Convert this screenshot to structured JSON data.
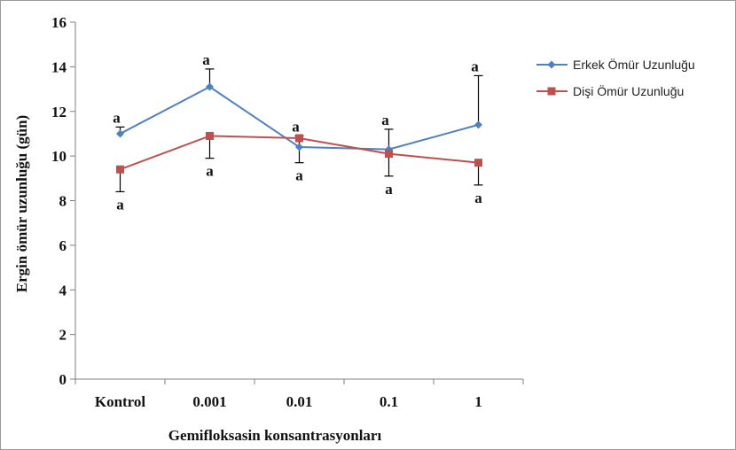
{
  "chart_data": {
    "type": "line",
    "categories": [
      "Kontrol",
      "0.001",
      "0.01",
      "0.1",
      "1"
    ],
    "xlabel": "Gemifloksasin konsantrasyonları",
    "ylabel": "Ergin ömür uzunluğu (gün)",
    "ylim": [
      0,
      16
    ],
    "yticks": [
      0,
      2,
      4,
      6,
      8,
      10,
      12,
      14,
      16
    ],
    "grid": false,
    "legend_position": "right",
    "series": [
      {
        "name": "Erkek Ömür Uzunluğu",
        "color": "#4f81bd",
        "marker": "diamond",
        "values": [
          11.0,
          13.1,
          10.4,
          10.3,
          11.4
        ],
        "error": [
          0.3,
          0.8,
          0.5,
          0.9,
          2.2
        ],
        "error_direction": "up",
        "letters": [
          "a",
          "a",
          "a",
          "a",
          "a"
        ]
      },
      {
        "name": "Dişi Ömür Uzunluğu",
        "color": "#c0504d",
        "marker": "square",
        "values": [
          9.4,
          10.9,
          10.8,
          10.1,
          9.7
        ],
        "error": [
          1.0,
          1.0,
          1.1,
          1.0,
          1.0
        ],
        "error_direction": "down",
        "letters": [
          "a",
          "a",
          "a",
          "a",
          "a"
        ]
      }
    ]
  }
}
